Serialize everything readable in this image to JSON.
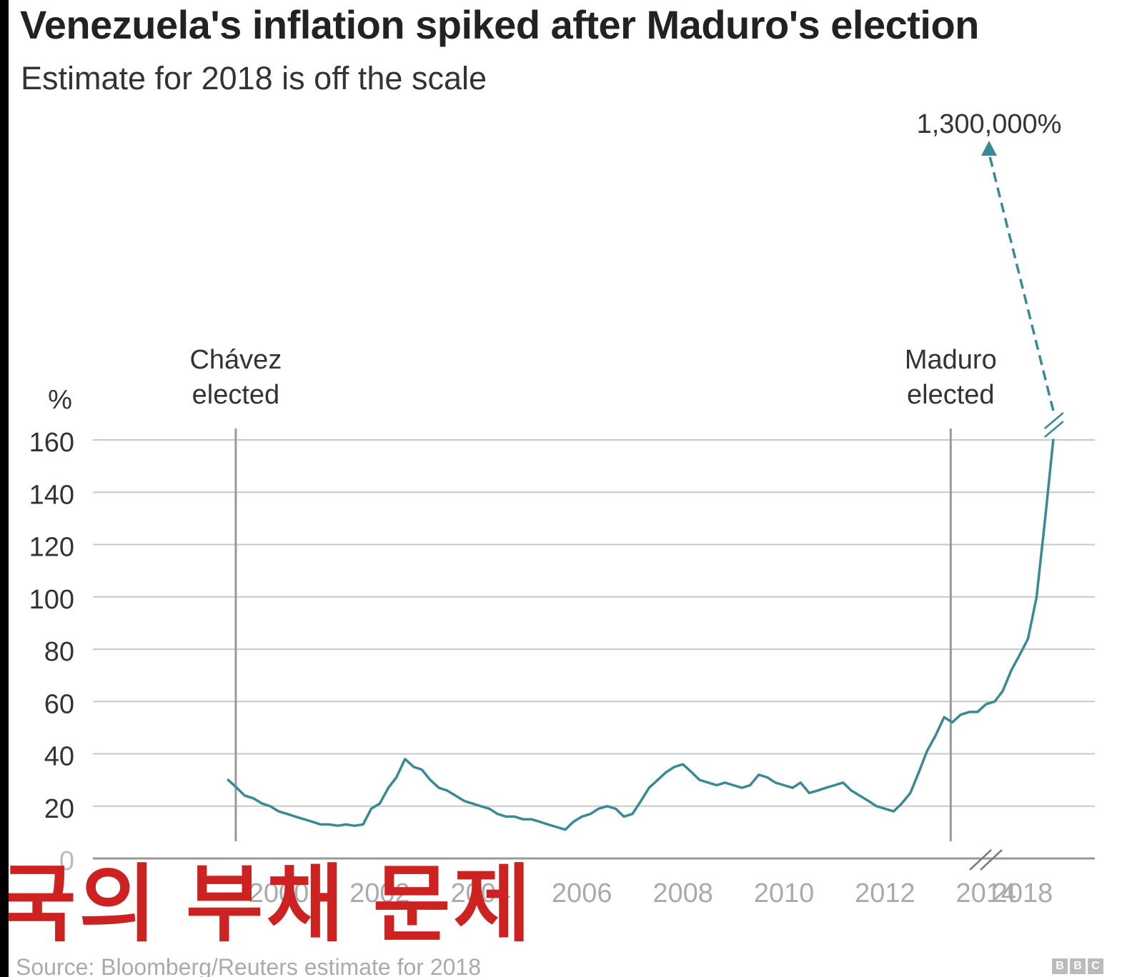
{
  "title": "Venezuela's inflation spiked after Maduro's election",
  "subtitle": "Estimate for 2018 is off the scale",
  "caption": "국의 부채 문제",
  "source": "Source: Bloomberg/Reuters estimate for 2018",
  "logo": "BBC",
  "colors": {
    "line": "#3a8a96",
    "grid": "#c8c8c8",
    "event_line": "#999999",
    "caption": "#cc2222"
  },
  "chart_data": {
    "type": "line",
    "title": "Venezuela's inflation spiked after Maduro's election",
    "subtitle": "Estimate for 2018 is off the scale",
    "xlabel": "",
    "ylabel": "%",
    "ylim": [
      0,
      160
    ],
    "y_ticks": [
      "0",
      "20",
      "40",
      "60",
      "80",
      "100",
      "120",
      "140",
      "160"
    ],
    "x_ticks": [
      "2000",
      "2002",
      "2004",
      "2006",
      "2008",
      "2010",
      "2012",
      "2014",
      "2018"
    ],
    "grid": true,
    "axis_break": "between 2015 and 2018",
    "series": [
      {
        "x": [
          1999.0,
          1999.17,
          1999.33,
          1999.5,
          1999.67,
          1999.83,
          2000.0,
          2000.17,
          2000.33,
          2000.5,
          2000.67,
          2000.83,
          2001.0,
          2001.17,
          2001.33,
          2001.5,
          2001.67,
          2001.83,
          2002.0,
          2002.17,
          2002.33,
          2002.5,
          2002.67,
          2002.83,
          2003.0,
          2003.17,
          2003.33,
          2003.5,
          2003.67,
          2003.83,
          2004.0,
          2004.17,
          2004.33,
          2004.5,
          2004.67,
          2004.83,
          2005.0,
          2005.17,
          2005.33,
          2005.5,
          2005.67,
          2005.83,
          2006.0,
          2006.17,
          2006.33,
          2006.5,
          2006.67,
          2006.83,
          2007.0,
          2007.17,
          2007.33,
          2007.5,
          2007.67,
          2007.83,
          2008.0,
          2008.17,
          2008.33,
          2008.5,
          2008.67,
          2008.83,
          2009.0,
          2009.17,
          2009.33,
          2009.5,
          2009.67,
          2009.83,
          2010.0,
          2010.17,
          2010.33,
          2010.5,
          2010.67,
          2010.83,
          2011.0,
          2011.17,
          2011.33,
          2011.5,
          2011.67,
          2011.83,
          2012.0,
          2012.17,
          2012.33,
          2012.5,
          2012.67,
          2012.83,
          2013.0,
          2013.17,
          2013.33,
          2013.5,
          2013.67,
          2013.83,
          2014.0,
          2014.17,
          2014.33,
          2014.5,
          2014.67,
          2014.83,
          2015.0,
          2015.17,
          2015.33
        ],
        "y": [
          30,
          27,
          24,
          23,
          21,
          20,
          18,
          17,
          16,
          15,
          14,
          13,
          13,
          12.5,
          13,
          12.5,
          13,
          19,
          21,
          27,
          31,
          38,
          35,
          34,
          30,
          27,
          26,
          24,
          22,
          21,
          20,
          19,
          17,
          16,
          16,
          15,
          15,
          14,
          13,
          12,
          11,
          14,
          16,
          17,
          19,
          20,
          19,
          16,
          17,
          22,
          27,
          30,
          33,
          35,
          36,
          33,
          30,
          29,
          28,
          29,
          28,
          27,
          28,
          32,
          31,
          29,
          28,
          27,
          29,
          25,
          26,
          27,
          28,
          29,
          26,
          24,
          22,
          20,
          19,
          18,
          21,
          25,
          33,
          41,
          47,
          54,
          52,
          55,
          56,
          56,
          59,
          60,
          64,
          72,
          78,
          84,
          100,
          130,
          160
        ]
      }
    ],
    "estimate": {
      "x": 2018,
      "label": "1,300,000%"
    },
    "events": [
      {
        "x": 1999.15,
        "label_lines": [
          "Chávez",
          "elected"
        ]
      },
      {
        "x": 2013.3,
        "label_lines": [
          "Maduro",
          "elected"
        ]
      }
    ]
  }
}
